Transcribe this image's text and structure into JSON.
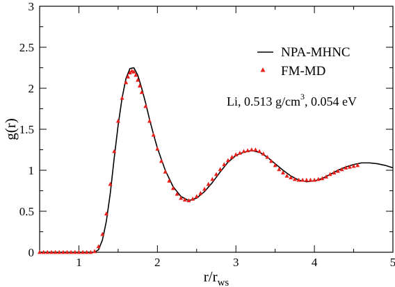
{
  "chart_data": {
    "type": "line",
    "xlabel_main": "r/r",
    "xlabel_sub": "ws",
    "ylabel": "g(r)",
    "xlim": [
      0.5,
      5.0
    ],
    "ylim": [
      0,
      3
    ],
    "xticks": [
      1,
      2,
      3,
      4,
      5
    ],
    "yticks": [
      0,
      0.5,
      1,
      1.5,
      2,
      2.5,
      3
    ],
    "ytick_labels": [
      "0",
      "0.5",
      "1",
      "1.5",
      "2",
      "2.5",
      "3"
    ],
    "grid": false,
    "legend_position": "top-right",
    "annotation": {
      "before_sup": "Li, 0.513 g/cm",
      "sup": "3",
      "after_sup": ",  0.054 eV"
    },
    "series": [
      {
        "name": "NPA-MHNC",
        "style": "line",
        "color": "#000000",
        "x": [
          0.5,
          1.0,
          1.2,
          1.25,
          1.3,
          1.35,
          1.4,
          1.45,
          1.5,
          1.55,
          1.6,
          1.65,
          1.7,
          1.75,
          1.8,
          1.85,
          1.9,
          1.95,
          2.0,
          2.1,
          2.2,
          2.3,
          2.4,
          2.5,
          2.6,
          2.7,
          2.8,
          2.9,
          3.0,
          3.1,
          3.2,
          3.3,
          3.4,
          3.5,
          3.6,
          3.7,
          3.8,
          3.9,
          4.0,
          4.1,
          4.2,
          4.3,
          4.4,
          4.5,
          4.6,
          4.7,
          4.8,
          4.9,
          5.0
        ],
        "y": [
          0.0,
          0.0,
          0.0,
          0.03,
          0.15,
          0.38,
          0.72,
          1.15,
          1.55,
          1.88,
          2.12,
          2.24,
          2.25,
          2.16,
          2.0,
          1.82,
          1.62,
          1.44,
          1.27,
          1.0,
          0.8,
          0.68,
          0.63,
          0.66,
          0.74,
          0.85,
          0.98,
          1.1,
          1.18,
          1.22,
          1.24,
          1.22,
          1.16,
          1.08,
          1.0,
          0.93,
          0.88,
          0.86,
          0.87,
          0.9,
          0.95,
          1.0,
          1.04,
          1.07,
          1.09,
          1.09,
          1.08,
          1.06,
          1.03
        ]
      },
      {
        "name": "FM-MD",
        "style": "triangles",
        "color": "#e8201c",
        "x": [
          0.5,
          0.55,
          0.6,
          0.65,
          0.7,
          0.75,
          0.8,
          0.85,
          0.9,
          0.95,
          1.0,
          1.05,
          1.1,
          1.15,
          1.2,
          1.25,
          1.3,
          1.35,
          1.4,
          1.45,
          1.5,
          1.55,
          1.6,
          1.625,
          1.65,
          1.675,
          1.7,
          1.725,
          1.75,
          1.775,
          1.8,
          1.85,
          1.9,
          1.95,
          2.0,
          2.05,
          2.1,
          2.15,
          2.2,
          2.25,
          2.3,
          2.35,
          2.4,
          2.45,
          2.5,
          2.55,
          2.6,
          2.65,
          2.7,
          2.75,
          2.8,
          2.85,
          2.9,
          2.95,
          3.0,
          3.05,
          3.1,
          3.15,
          3.2,
          3.25,
          3.3,
          3.35,
          3.4,
          3.45,
          3.5,
          3.55,
          3.6,
          3.65,
          3.7,
          3.75,
          3.8,
          3.85,
          3.9,
          3.95,
          4.0,
          4.05,
          4.1,
          4.15,
          4.2,
          4.25,
          4.3,
          4.35,
          4.4,
          4.45,
          4.5,
          4.55
        ],
        "y": [
          0.0,
          0.0,
          0.0,
          0.0,
          0.0,
          0.0,
          0.0,
          0.0,
          0.0,
          0.0,
          0.0,
          0.0,
          0.0,
          0.0,
          0.01,
          0.07,
          0.22,
          0.47,
          0.83,
          1.23,
          1.6,
          1.88,
          2.07,
          2.14,
          2.19,
          2.21,
          2.2,
          2.16,
          2.1,
          2.03,
          1.95,
          1.78,
          1.6,
          1.43,
          1.26,
          1.11,
          0.98,
          0.87,
          0.78,
          0.71,
          0.66,
          0.64,
          0.63,
          0.65,
          0.68,
          0.72,
          0.77,
          0.83,
          0.89,
          0.95,
          1.01,
          1.07,
          1.12,
          1.16,
          1.19,
          1.21,
          1.23,
          1.24,
          1.25,
          1.25,
          1.23,
          1.2,
          1.16,
          1.11,
          1.06,
          1.01,
          0.97,
          0.93,
          0.91,
          0.89,
          0.88,
          0.88,
          0.88,
          0.88,
          0.88,
          0.89,
          0.9,
          0.92,
          0.95,
          0.97,
          0.99,
          1.01,
          1.03,
          1.04,
          1.05,
          1.06
        ]
      }
    ]
  }
}
